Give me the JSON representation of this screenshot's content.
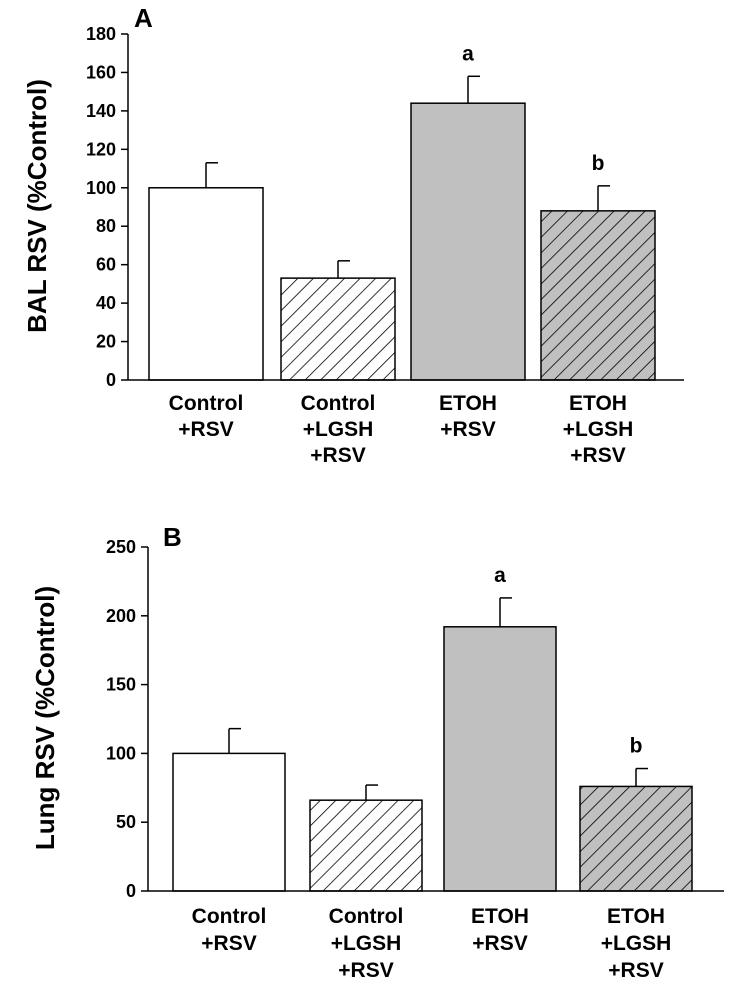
{
  "colors": {
    "white_fill": "#ffffff",
    "gray_fill": "#c0c0c0",
    "stroke": "#000000"
  },
  "chart_data": [
    {
      "type": "bar",
      "panel_label": "A",
      "ylabel": "BAL RSV (%Control)",
      "ylim": [
        0,
        180
      ],
      "yticks": [
        0,
        20,
        40,
        60,
        80,
        100,
        120,
        140,
        160,
        180
      ],
      "categories": [
        [
          "Control",
          "+RSV"
        ],
        [
          "Control",
          "+LGSH",
          "+RSV"
        ],
        [
          "ETOH",
          "+RSV"
        ],
        [
          "ETOH",
          "+LGSH",
          "+RSV"
        ]
      ],
      "values": [
        100,
        53,
        144,
        88
      ],
      "errors": [
        13,
        9,
        14,
        13
      ],
      "fills": [
        "white",
        "white-hatch",
        "gray",
        "gray-hatch"
      ],
      "annotations": [
        "",
        "",
        "a",
        "b"
      ]
    },
    {
      "type": "bar",
      "panel_label": "B",
      "ylabel": "Lung RSV (%Control)",
      "ylim": [
        0,
        250
      ],
      "yticks": [
        0,
        50,
        100,
        150,
        200,
        250
      ],
      "categories": [
        [
          "Control",
          "+RSV"
        ],
        [
          "Control",
          "+LGSH",
          "+RSV"
        ],
        [
          "ETOH",
          "+RSV"
        ],
        [
          "ETOH",
          "+LGSH",
          "+RSV"
        ]
      ],
      "values": [
        100,
        66,
        192,
        76
      ],
      "errors": [
        18,
        11,
        21,
        13
      ],
      "fills": [
        "white",
        "white-hatch",
        "gray",
        "gray-hatch"
      ],
      "annotations": [
        "",
        "",
        "a",
        "b"
      ]
    }
  ]
}
